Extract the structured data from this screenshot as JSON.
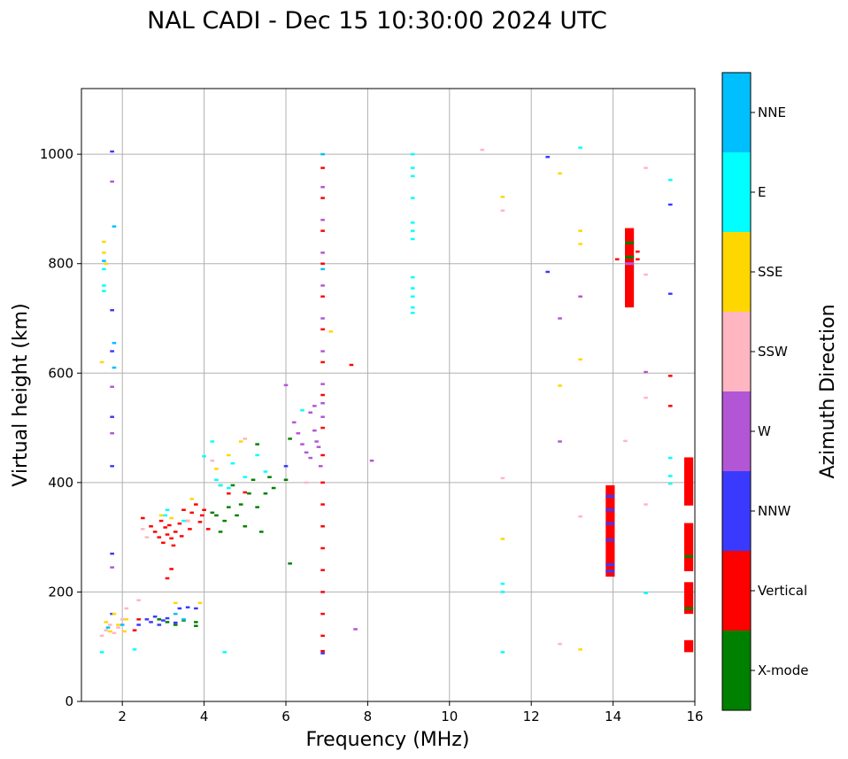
{
  "chart_data": {
    "type": "scatter",
    "title": "NAL CADI - Dec 15 10:30:00 2024 UTC",
    "xlabel": "Frequency (MHz)",
    "ylabel": "Virtual height (km)",
    "xlim": [
      1,
      16
    ],
    "ylim": [
      0,
      1120
    ],
    "xticks": [
      2,
      4,
      6,
      8,
      10,
      12,
      14,
      16
    ],
    "yticks": [
      0,
      200,
      400,
      600,
      800,
      1000
    ],
    "grid": true,
    "mark_width_mhz": 0.1,
    "mark_height_km": 4,
    "colorbar": {
      "label": "Azimuth Direction",
      "categories": [
        {
          "name": "X-mode",
          "color": "#008000"
        },
        {
          "name": "Vertical",
          "color": "#ff0000"
        },
        {
          "name": "NNW",
          "color": "#3a3aff"
        },
        {
          "name": "W",
          "color": "#b356d6"
        },
        {
          "name": "SSW",
          "color": "#ffb6c1"
        },
        {
          "name": "SSE",
          "color": "#ffd700"
        },
        {
          "name": "E",
          "color": "#00ffff"
        },
        {
          "name": "NNE",
          "color": "#00bfff"
        }
      ]
    },
    "series": [
      {
        "name": "X-mode",
        "color": "#008000",
        "points": [
          [
            2.9,
            150
          ],
          [
            3.1,
            145
          ],
          [
            3.3,
            140
          ],
          [
            3.5,
            148
          ],
          [
            3.8,
            145
          ],
          [
            3.8,
            138
          ],
          [
            4.2,
            345
          ],
          [
            4.4,
            310
          ],
          [
            4.5,
            330
          ],
          [
            4.6,
            355
          ],
          [
            4.7,
            395
          ],
          [
            4.9,
            360
          ],
          [
            5.1,
            380
          ],
          [
            5.2,
            405
          ],
          [
            5.3,
            355
          ],
          [
            5.4,
            310
          ],
          [
            5.5,
            380
          ],
          [
            5.6,
            410
          ],
          [
            6.0,
            405
          ],
          [
            6.1,
            480
          ],
          [
            6.1,
            252
          ],
          [
            4.4,
            395
          ],
          [
            4.8,
            340
          ],
          [
            5.0,
            320
          ],
          [
            5.7,
            390
          ],
          [
            15.9,
            265
          ],
          [
            15.9,
            170
          ],
          [
            4.3,
            340
          ],
          [
            5.3,
            470
          ]
        ]
      },
      {
        "name": "Vertical",
        "color": "#ff0000",
        "points": [
          [
            2.3,
            130
          ],
          [
            2.4,
            150
          ],
          [
            2.5,
            335
          ],
          [
            2.7,
            320
          ],
          [
            2.8,
            310
          ],
          [
            2.9,
            300
          ],
          [
            2.95,
            330
          ],
          [
            3.0,
            290
          ],
          [
            3.05,
            318
          ],
          [
            3.1,
            305
          ],
          [
            3.15,
            322
          ],
          [
            3.2,
            298
          ],
          [
            3.25,
            285
          ],
          [
            3.3,
            310
          ],
          [
            3.4,
            325
          ],
          [
            3.45,
            302
          ],
          [
            3.5,
            350
          ],
          [
            3.6,
            330
          ],
          [
            3.65,
            315
          ],
          [
            3.7,
            345
          ],
          [
            3.8,
            360
          ],
          [
            3.9,
            328
          ],
          [
            3.95,
            340
          ],
          [
            4.0,
            350
          ],
          [
            4.1,
            315
          ],
          [
            3.1,
            225
          ],
          [
            3.2,
            242
          ],
          [
            4.6,
            380
          ],
          [
            5.0,
            382
          ],
          [
            6.9,
            92
          ],
          [
            6.9,
            120
          ],
          [
            6.9,
            160
          ],
          [
            6.9,
            200
          ],
          [
            6.9,
            240
          ],
          [
            6.9,
            280
          ],
          [
            6.9,
            320
          ],
          [
            6.9,
            360
          ],
          [
            6.9,
            400
          ],
          [
            6.9,
            450
          ],
          [
            6.9,
            500
          ],
          [
            6.9,
            560
          ],
          [
            6.9,
            620
          ],
          [
            6.9,
            680
          ],
          [
            6.9,
            740
          ],
          [
            6.9,
            800
          ],
          [
            6.9,
            860
          ],
          [
            6.9,
            920
          ],
          [
            6.9,
            975
          ],
          [
            7.6,
            615
          ],
          [
            14.1,
            808
          ],
          [
            14.6,
            808
          ],
          [
            14.6,
            822
          ],
          [
            15.4,
            595
          ],
          [
            15.4,
            540
          ]
        ]
      },
      {
        "name": "NNW",
        "color": "#3a3aff",
        "points": [
          [
            1.75,
            1005
          ],
          [
            1.75,
            715
          ],
          [
            1.75,
            640
          ],
          [
            1.75,
            520
          ],
          [
            1.75,
            430
          ],
          [
            1.75,
            270
          ],
          [
            1.75,
            160
          ],
          [
            2.6,
            150
          ],
          [
            2.7,
            145
          ],
          [
            2.8,
            155
          ],
          [
            2.9,
            140
          ],
          [
            3.0,
            148
          ],
          [
            3.1,
            152
          ],
          [
            3.3,
            144
          ],
          [
            3.4,
            170
          ],
          [
            3.6,
            172
          ],
          [
            3.8,
            170
          ],
          [
            2.4,
            140
          ],
          [
            12.4,
            995
          ],
          [
            12.4,
            785
          ],
          [
            15.4,
            745
          ],
          [
            15.4,
            908
          ],
          [
            6.0,
            430
          ],
          [
            6.9,
            88
          ]
        ]
      },
      {
        "name": "W",
        "color": "#b356d6",
        "points": [
          [
            6.0,
            578
          ],
          [
            6.2,
            510
          ],
          [
            6.3,
            490
          ],
          [
            6.4,
            470
          ],
          [
            6.5,
            455
          ],
          [
            6.6,
            445
          ],
          [
            6.7,
            495
          ],
          [
            6.75,
            475
          ],
          [
            6.8,
            465
          ],
          [
            6.85,
            430
          ],
          [
            6.9,
            520
          ],
          [
            6.9,
            545
          ],
          [
            6.9,
            580
          ],
          [
            6.9,
            640
          ],
          [
            6.9,
            700
          ],
          [
            6.9,
            760
          ],
          [
            6.9,
            820
          ],
          [
            6.9,
            880
          ],
          [
            6.9,
            940
          ],
          [
            8.1,
            440
          ],
          [
            12.7,
            700
          ],
          [
            12.7,
            475
          ],
          [
            13.2,
            740
          ],
          [
            14.8,
            602
          ],
          [
            6.6,
            528
          ],
          [
            6.7,
            540
          ],
          [
            7.7,
            132
          ],
          [
            1.75,
            950
          ],
          [
            1.75,
            575
          ],
          [
            1.75,
            245
          ],
          [
            1.75,
            490
          ]
        ]
      },
      {
        "name": "SSW",
        "color": "#ffb6c1",
        "points": [
          [
            1.5,
            120
          ],
          [
            1.6,
            130
          ],
          [
            1.7,
            140
          ],
          [
            1.8,
            125
          ],
          [
            1.9,
            135
          ],
          [
            2.0,
            150
          ],
          [
            2.1,
            170
          ],
          [
            2.4,
            185
          ],
          [
            2.5,
            315
          ],
          [
            2.6,
            300
          ],
          [
            3.6,
            330
          ],
          [
            4.2,
            440
          ],
          [
            10.8,
            1008
          ],
          [
            11.3,
            897
          ],
          [
            11.3,
            408
          ],
          [
            12.7,
            105
          ],
          [
            13.2,
            338
          ],
          [
            14.3,
            476
          ],
          [
            14.8,
            555
          ],
          [
            14.8,
            975
          ],
          [
            14.8,
            780
          ],
          [
            14.8,
            360
          ],
          [
            6.5,
            400
          ],
          [
            5.0,
            480
          ]
        ]
      },
      {
        "name": "SSE",
        "color": "#ffd700",
        "points": [
          [
            1.55,
            820
          ],
          [
            1.55,
            840
          ],
          [
            1.6,
            800
          ],
          [
            1.6,
            145
          ],
          [
            1.7,
            128
          ],
          [
            1.8,
            160
          ],
          [
            1.9,
            140
          ],
          [
            2.05,
            128
          ],
          [
            2.1,
            150
          ],
          [
            3.3,
            180
          ],
          [
            3.9,
            180
          ],
          [
            2.95,
            340
          ],
          [
            3.2,
            335
          ],
          [
            3.7,
            370
          ],
          [
            4.3,
            425
          ],
          [
            4.6,
            450
          ],
          [
            4.9,
            475
          ],
          [
            11.3,
            922
          ],
          [
            11.3,
            297
          ],
          [
            12.7,
            965
          ],
          [
            12.7,
            577
          ],
          [
            13.2,
            860
          ],
          [
            13.2,
            836
          ],
          [
            13.2,
            625
          ],
          [
            13.2,
            95
          ],
          [
            7.1,
            676
          ],
          [
            1.5,
            620
          ]
        ]
      },
      {
        "name": "E",
        "color": "#00ffff",
        "points": [
          [
            9.1,
            1000
          ],
          [
            9.1,
            975
          ],
          [
            9.1,
            960
          ],
          [
            9.1,
            920
          ],
          [
            9.1,
            875
          ],
          [
            9.1,
            860
          ],
          [
            9.1,
            845
          ],
          [
            9.1,
            775
          ],
          [
            9.1,
            755
          ],
          [
            9.1,
            740
          ],
          [
            9.1,
            720
          ],
          [
            9.1,
            710
          ],
          [
            1.55,
            790
          ],
          [
            1.55,
            760
          ],
          [
            1.55,
            750
          ],
          [
            2.3,
            95
          ],
          [
            1.5,
            90
          ],
          [
            4.0,
            448
          ],
          [
            4.2,
            475
          ],
          [
            4.3,
            405
          ],
          [
            4.4,
            395
          ],
          [
            4.6,
            390
          ],
          [
            4.7,
            435
          ],
          [
            5.0,
            410
          ],
          [
            5.3,
            450
          ],
          [
            5.5,
            420
          ],
          [
            11.3,
            215
          ],
          [
            11.3,
            200
          ],
          [
            11.3,
            90
          ],
          [
            13.2,
            1012
          ],
          [
            15.4,
            953
          ],
          [
            15.4,
            445
          ],
          [
            15.4,
            412
          ],
          [
            15.4,
            398
          ],
          [
            14.8,
            198
          ],
          [
            4.5,
            90
          ],
          [
            6.4,
            532
          ],
          [
            3.05,
            340
          ],
          [
            3.5,
            330
          ],
          [
            3.1,
            350
          ]
        ]
      },
      {
        "name": "NNE",
        "color": "#00bfff",
        "points": [
          [
            1.55,
            805
          ],
          [
            1.8,
            868
          ],
          [
            1.8,
            655
          ],
          [
            1.8,
            610
          ],
          [
            3.3,
            160
          ],
          [
            3.5,
            150
          ],
          [
            2.0,
            140
          ],
          [
            6.9,
            1000
          ],
          [
            6.9,
            790
          ],
          [
            1.65,
            135
          ]
        ]
      }
    ],
    "vertical_bars": [
      {
        "color": "#ff0000",
        "x": 13.93,
        "y_from": 228,
        "y_to": 395
      },
      {
        "color": "#ff0000",
        "x": 14.4,
        "y_from": 720,
        "y_to": 865
      },
      {
        "color": "#ff0000",
        "x": 15.85,
        "y_from": 358,
        "y_to": 446
      },
      {
        "color": "#ff0000",
        "x": 15.85,
        "y_from": 238,
        "y_to": 326
      },
      {
        "color": "#ff0000",
        "x": 15.85,
        "y_from": 160,
        "y_to": 218
      },
      {
        "color": "#ff0000",
        "x": 15.85,
        "y_from": 90,
        "y_to": 112
      }
    ],
    "bar_overlays": [
      {
        "color": "#3a3aff",
        "x": 13.93,
        "y": 375
      },
      {
        "color": "#3a3aff",
        "x": 13.93,
        "y": 350
      },
      {
        "color": "#3a3aff",
        "x": 13.93,
        "y": 325
      },
      {
        "color": "#3a3aff",
        "x": 13.93,
        "y": 295
      },
      {
        "color": "#3a3aff",
        "x": 13.93,
        "y": 250
      },
      {
        "color": "#3a3aff",
        "x": 13.93,
        "y": 238
      },
      {
        "color": "#008000",
        "x": 14.4,
        "y": 838
      },
      {
        "color": "#008000",
        "x": 14.4,
        "y": 812
      },
      {
        "color": "#b356d6",
        "x": 14.4,
        "y": 800
      },
      {
        "color": "#008000",
        "x": 15.85,
        "y": 265
      },
      {
        "color": "#008000",
        "x": 15.85,
        "y": 170
      }
    ]
  }
}
